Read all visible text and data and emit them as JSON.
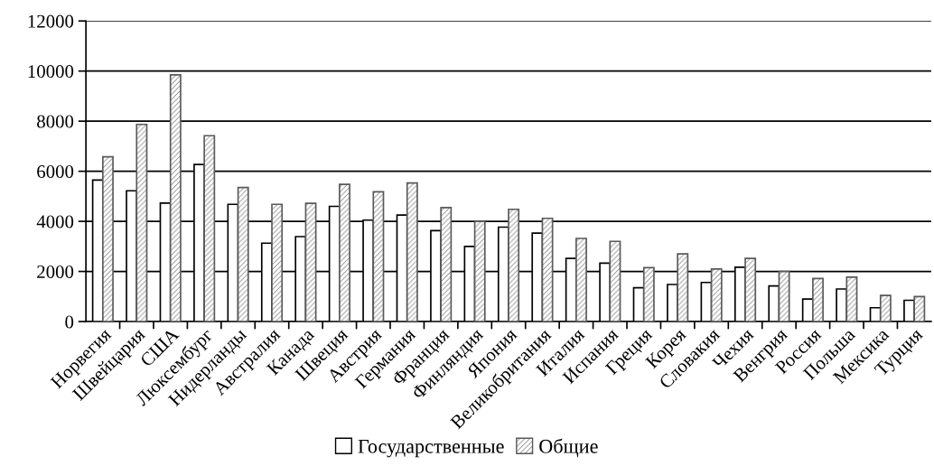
{
  "chart_data": {
    "type": "bar",
    "categories": [
      "Норвегия",
      "Швейцария",
      "США",
      "Люксембург",
      "Нидерланды",
      "Австралия",
      "Канада",
      "Швеция",
      "Австрия",
      "Германия",
      "Франция",
      "Финляндия",
      "Япония",
      "Великобритания",
      "Италия",
      "Испания",
      "Греция",
      "Корея",
      "Словакия",
      "Чехия",
      "Венгрия",
      "Россия",
      "Польша",
      "Мексика",
      "Турция"
    ],
    "series": [
      {
        "name": "Государственные",
        "color": "#ffffff",
        "values": [
          5650,
          5220,
          4730,
          6270,
          4680,
          3130,
          3390,
          4600,
          4050,
          4250,
          3630,
          3000,
          3770,
          3530,
          2520,
          2330,
          1350,
          1480,
          1560,
          2170,
          1420,
          900,
          1300,
          550,
          850
        ]
      },
      {
        "name": "Общие",
        "color": "#5a5a5a",
        "values": [
          6580,
          7870,
          9850,
          7420,
          5350,
          4680,
          4720,
          5480,
          5180,
          5530,
          4550,
          4000,
          4480,
          4120,
          3320,
          3200,
          2150,
          2700,
          2100,
          2520,
          2000,
          1720,
          1770,
          1040,
          1000
        ]
      }
    ],
    "ylim": [
      0,
      12000
    ],
    "yticks": [
      0,
      2000,
      4000,
      6000,
      8000,
      10000,
      12000
    ],
    "grid": "y",
    "legend": "bottom"
  }
}
